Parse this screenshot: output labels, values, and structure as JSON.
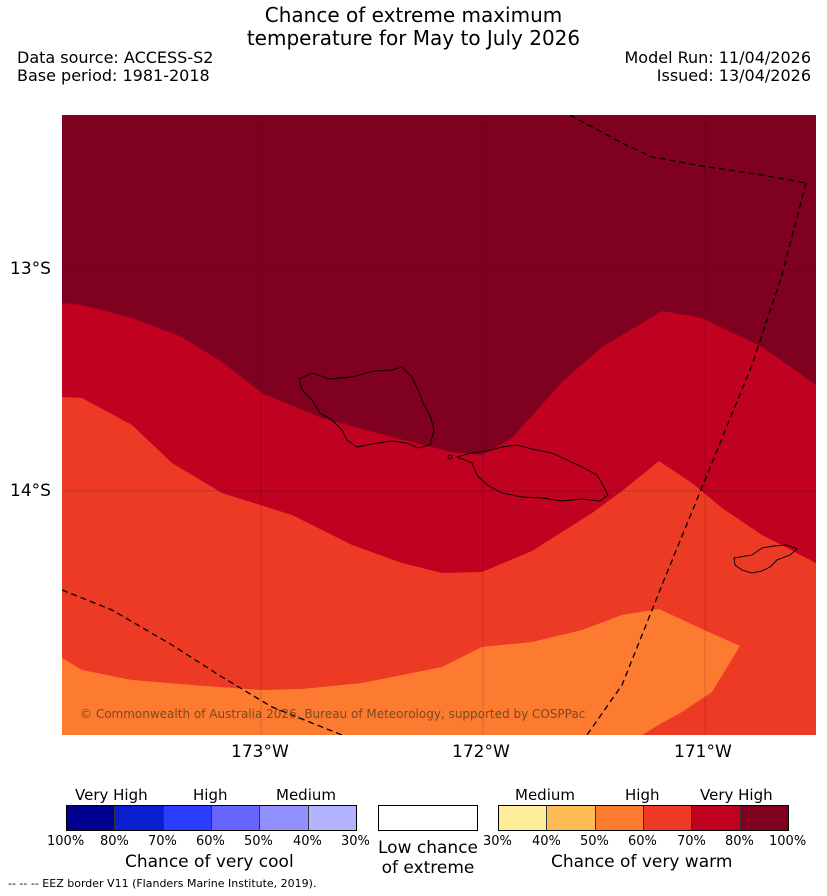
{
  "title": {
    "line1": "Chance of extreme maximum",
    "line2": "temperature for May to July 2026"
  },
  "meta": {
    "data_source": "Data source: ACCESS-S2",
    "base_period": "Base period: 1981-2018",
    "model_run": "Model Run: 11/04/2026",
    "issued": "Issued: 13/04/2026"
  },
  "map": {
    "lat_labels": [
      "13°S",
      "14°S"
    ],
    "lon_labels": [
      "173°W",
      "172°W",
      "171°W"
    ],
    "copyright": "© Commonwealth of Australia 2026, Bureau of Meteorology, supported by COSPPac"
  },
  "legend_cool": {
    "categories": [
      "Very High",
      "High",
      "Medium"
    ],
    "ticks": [
      "100%",
      "80%",
      "70%",
      "60%",
      "50%",
      "40%",
      "30%"
    ],
    "colors": [
      "#00008e",
      "#0a1fd0",
      "#2c3eff",
      "#6666ff",
      "#9090ff",
      "#b3b3ff"
    ],
    "title": "Chance of very cool"
  },
  "legend_low": {
    "line1": "Low chance",
    "line2": "of extreme"
  },
  "legend_warm": {
    "categories": [
      "Medium",
      "High",
      "Very High"
    ],
    "ticks": [
      "30%",
      "40%",
      "50%",
      "60%",
      "70%",
      "80%",
      "100%"
    ],
    "colors": [
      "#ffee99",
      "#fdbb55",
      "#fd7b30",
      "#ec3a25",
      "#c00120",
      "#800020"
    ],
    "title": "Chance of very warm"
  },
  "footnote": "--  --  -- EEZ border V11 (Flanders Marine Institute, 2019)."
}
